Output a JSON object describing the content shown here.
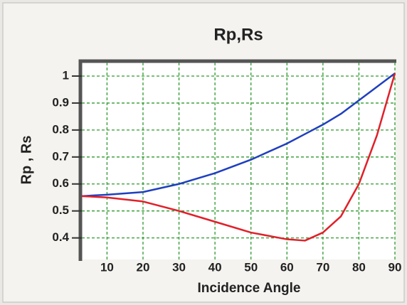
{
  "chart_data": {
    "type": "line",
    "title": "Rp,Rs",
    "x_label": "Incidence Angle",
    "y_label": "Rp , Rs",
    "x": [
      3,
      10,
      20,
      30,
      40,
      50,
      60,
      65,
      70,
      75,
      80,
      85,
      90
    ],
    "series": [
      {
        "color": "#1f3fbf",
        "values": [
          0.555,
          0.56,
          0.57,
          0.6,
          0.64,
          0.69,
          0.75,
          0.785,
          0.82,
          0.86,
          0.91,
          0.96,
          1.01
        ]
      },
      {
        "color": "#e0202a",
        "values": [
          0.555,
          0.55,
          0.535,
          0.5,
          0.46,
          0.42,
          0.395,
          0.39,
          0.42,
          0.48,
          0.6,
          0.78,
          1.01
        ]
      }
    ],
    "xlim": [
      3,
      90
    ],
    "ylim": [
      0.32,
      1.05
    ],
    "xticks": [
      10,
      20,
      30,
      40,
      50,
      60,
      70,
      80,
      90
    ],
    "yticks": [
      0.4,
      0.5,
      0.6,
      0.7,
      0.8,
      0.9,
      1
    ],
    "grid": true,
    "grid_color": "#2e9a2e"
  }
}
